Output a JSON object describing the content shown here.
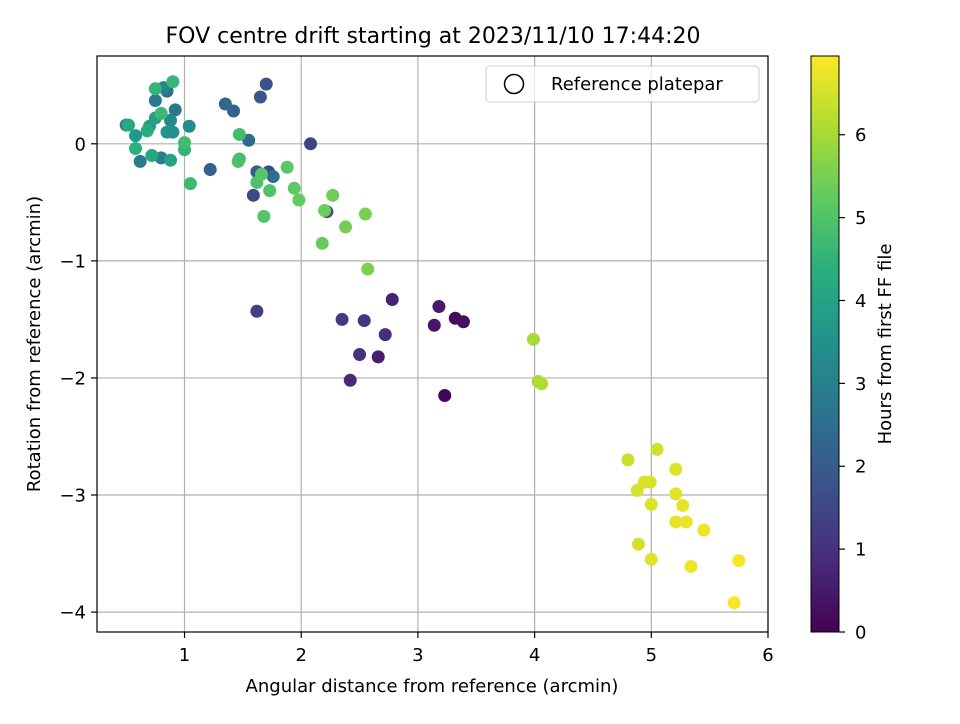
{
  "chart_data": {
    "type": "scatter",
    "title": "FOV centre drift starting at 2023/11/10 17:44:20",
    "xlabel": "Angular distance from reference (arcmin)",
    "ylabel": "Rotation from reference (arcmin)",
    "xlim": [
      0.25,
      6.0
    ],
    "ylim": [
      -4.17,
      0.75
    ],
    "xticks": [
      1,
      2,
      3,
      4,
      5,
      6
    ],
    "xtick_labels": [
      "1",
      "2",
      "3",
      "4",
      "5",
      "6"
    ],
    "yticks": [
      0,
      -1,
      -2,
      -3,
      -4
    ],
    "ytick_labels": [
      "0",
      "−1",
      "−2",
      "−3",
      "−4"
    ],
    "grid": true,
    "legend": {
      "placement": "top-right",
      "entries": [
        "Reference platepar"
      ]
    },
    "colorbar": {
      "label": "Hours from first FF file",
      "colormap": "viridis",
      "range": [
        0,
        6.95
      ],
      "ticks": [
        0,
        1,
        2,
        3,
        4,
        5,
        6
      ],
      "tick_labels": [
        "0",
        "1",
        "2",
        "3",
        "4",
        "5",
        "6"
      ]
    },
    "points": [
      {
        "x": 3.23,
        "y": -2.15,
        "hours": 0.1
      },
      {
        "x": 3.32,
        "y": -1.49,
        "hours": 0.2
      },
      {
        "x": 3.39,
        "y": -1.52,
        "hours": 0.3
      },
      {
        "x": 3.14,
        "y": -1.55,
        "hours": 0.4
      },
      {
        "x": 3.18,
        "y": -1.39,
        "hours": 0.5
      },
      {
        "x": 2.66,
        "y": -1.82,
        "hours": 0.6
      },
      {
        "x": 2.78,
        "y": -1.33,
        "hours": 0.7
      },
      {
        "x": 2.42,
        "y": -2.02,
        "hours": 0.8
      },
      {
        "x": 2.72,
        "y": -1.63,
        "hours": 0.9
      },
      {
        "x": 2.5,
        "y": -1.8,
        "hours": 1.0
      },
      {
        "x": 2.54,
        "y": -1.51,
        "hours": 1.1
      },
      {
        "x": 2.35,
        "y": -1.5,
        "hours": 1.2
      },
      {
        "x": 1.62,
        "y": -1.43,
        "hours": 1.3
      },
      {
        "x": 2.08,
        "y": 0.0,
        "hours": 1.4
      },
      {
        "x": 1.59,
        "y": -0.44,
        "hours": 1.5
      },
      {
        "x": 1.72,
        "y": -0.24,
        "hours": 1.6
      },
      {
        "x": 2.22,
        "y": -0.58,
        "hours": 1.7
      },
      {
        "x": 1.7,
        "y": 0.51,
        "hours": 1.8
      },
      {
        "x": 1.65,
        "y": 0.4,
        "hours": 1.9
      },
      {
        "x": 1.62,
        "y": -0.24,
        "hours": 2.0
      },
      {
        "x": 1.22,
        "y": -0.22,
        "hours": 2.1
      },
      {
        "x": 1.42,
        "y": 0.28,
        "hours": 2.2
      },
      {
        "x": 1.35,
        "y": 0.34,
        "hours": 2.3
      },
      {
        "x": 1.55,
        "y": 0.03,
        "hours": 2.4
      },
      {
        "x": 1.76,
        "y": -0.28,
        "hours": 2.5
      },
      {
        "x": 0.85,
        "y": 0.45,
        "hours": 2.6
      },
      {
        "x": 0.92,
        "y": 0.29,
        "hours": 2.7
      },
      {
        "x": 0.75,
        "y": 0.37,
        "hours": 2.8
      },
      {
        "x": 0.62,
        "y": -0.15,
        "hours": 2.9
      },
      {
        "x": 0.8,
        "y": -0.12,
        "hours": 3.0
      },
      {
        "x": 0.5,
        "y": 0.16,
        "hours": 3.1
      },
      {
        "x": 0.82,
        "y": 0.48,
        "hours": 3.2
      },
      {
        "x": 0.88,
        "y": 0.2,
        "hours": 3.3
      },
      {
        "x": 1.04,
        "y": 0.15,
        "hours": 3.4
      },
      {
        "x": 0.9,
        "y": 0.1,
        "hours": 3.5
      },
      {
        "x": 0.85,
        "y": 0.1,
        "hours": 3.6
      },
      {
        "x": 0.58,
        "y": 0.07,
        "hours": 3.7
      },
      {
        "x": 0.7,
        "y": 0.15,
        "hours": 3.8
      },
      {
        "x": 0.75,
        "y": 0.22,
        "hours": 3.9
      },
      {
        "x": 0.88,
        "y": -0.14,
        "hours": 4.0
      },
      {
        "x": 0.72,
        "y": -0.1,
        "hours": 4.1
      },
      {
        "x": 0.52,
        "y": 0.16,
        "hours": 4.2
      },
      {
        "x": 0.68,
        "y": 0.11,
        "hours": 4.3
      },
      {
        "x": 0.58,
        "y": -0.04,
        "hours": 4.4
      },
      {
        "x": 1.0,
        "y": -0.05,
        "hours": 4.5
      },
      {
        "x": 0.75,
        "y": 0.47,
        "hours": 4.55
      },
      {
        "x": 0.9,
        "y": 0.53,
        "hours": 4.6
      },
      {
        "x": 0.8,
        "y": 0.26,
        "hours": 4.65
      },
      {
        "x": 1.05,
        "y": -0.34,
        "hours": 4.7
      },
      {
        "x": 1.0,
        "y": 0.01,
        "hours": 4.75
      },
      {
        "x": 1.47,
        "y": 0.08,
        "hours": 4.8
      },
      {
        "x": 1.47,
        "y": -0.13,
        "hours": 4.85
      },
      {
        "x": 1.46,
        "y": -0.15,
        "hours": 4.9
      },
      {
        "x": 1.62,
        "y": -0.33,
        "hours": 4.95
      },
      {
        "x": 1.73,
        "y": -0.4,
        "hours": 5.0
      },
      {
        "x": 1.68,
        "y": -0.62,
        "hours": 5.05
      },
      {
        "x": 1.66,
        "y": -0.26,
        "hours": 5.1
      },
      {
        "x": 1.88,
        "y": -0.2,
        "hours": 5.15
      },
      {
        "x": 1.94,
        "y": -0.38,
        "hours": 5.2
      },
      {
        "x": 1.98,
        "y": -0.48,
        "hours": 5.25
      },
      {
        "x": 2.18,
        "y": -0.85,
        "hours": 5.3
      },
      {
        "x": 2.2,
        "y": -0.57,
        "hours": 5.35
      },
      {
        "x": 2.27,
        "y": -0.44,
        "hours": 5.4
      },
      {
        "x": 2.38,
        "y": -0.71,
        "hours": 5.45
      },
      {
        "x": 2.55,
        "y": -0.6,
        "hours": 5.5
      },
      {
        "x": 2.57,
        "y": -1.07,
        "hours": 5.55
      },
      {
        "x": 3.99,
        "y": -1.67,
        "hours": 6.0
      },
      {
        "x": 4.03,
        "y": -2.03,
        "hours": 6.05
      },
      {
        "x": 4.06,
        "y": -2.05,
        "hours": 6.1
      },
      {
        "x": 4.8,
        "y": -2.7,
        "hours": 6.4
      },
      {
        "x": 5.05,
        "y": -2.61,
        "hours": 6.45
      },
      {
        "x": 4.88,
        "y": -2.96,
        "hours": 6.5
      },
      {
        "x": 4.89,
        "y": -3.42,
        "hours": 6.5
      },
      {
        "x": 4.94,
        "y": -2.89,
        "hours": 6.55
      },
      {
        "x": 4.99,
        "y": -2.89,
        "hours": 6.55
      },
      {
        "x": 5.0,
        "y": -3.08,
        "hours": 6.6
      },
      {
        "x": 5.0,
        "y": -3.55,
        "hours": 6.6
      },
      {
        "x": 5.21,
        "y": -2.78,
        "hours": 6.6
      },
      {
        "x": 5.21,
        "y": -2.99,
        "hours": 6.65
      },
      {
        "x": 5.21,
        "y": -3.23,
        "hours": 6.7
      },
      {
        "x": 5.27,
        "y": -3.09,
        "hours": 6.7
      },
      {
        "x": 5.3,
        "y": -3.23,
        "hours": 6.75
      },
      {
        "x": 5.34,
        "y": -3.61,
        "hours": 6.8
      },
      {
        "x": 5.45,
        "y": -3.3,
        "hours": 6.8
      },
      {
        "x": 5.71,
        "y": -3.92,
        "hours": 6.9
      },
      {
        "x": 5.75,
        "y": -3.56,
        "hours": 6.9
      }
    ]
  }
}
